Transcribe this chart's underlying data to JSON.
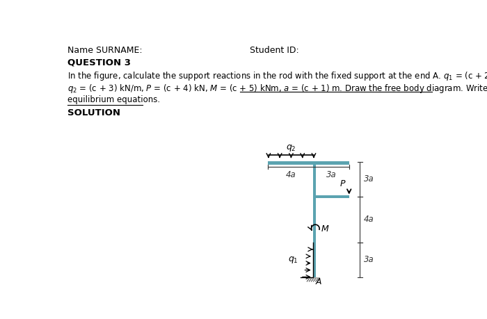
{
  "title_left": "Name SURNAME:",
  "title_right": "Student ID:",
  "question_title": "QUESTION 3",
  "solution_label": "SOLUTION",
  "beam_color": "#5ba3b0",
  "ground_color": "#aaaaaa",
  "dim_color": "#333333",
  "text_color": "#000000",
  "background_color": "#ffffff"
}
